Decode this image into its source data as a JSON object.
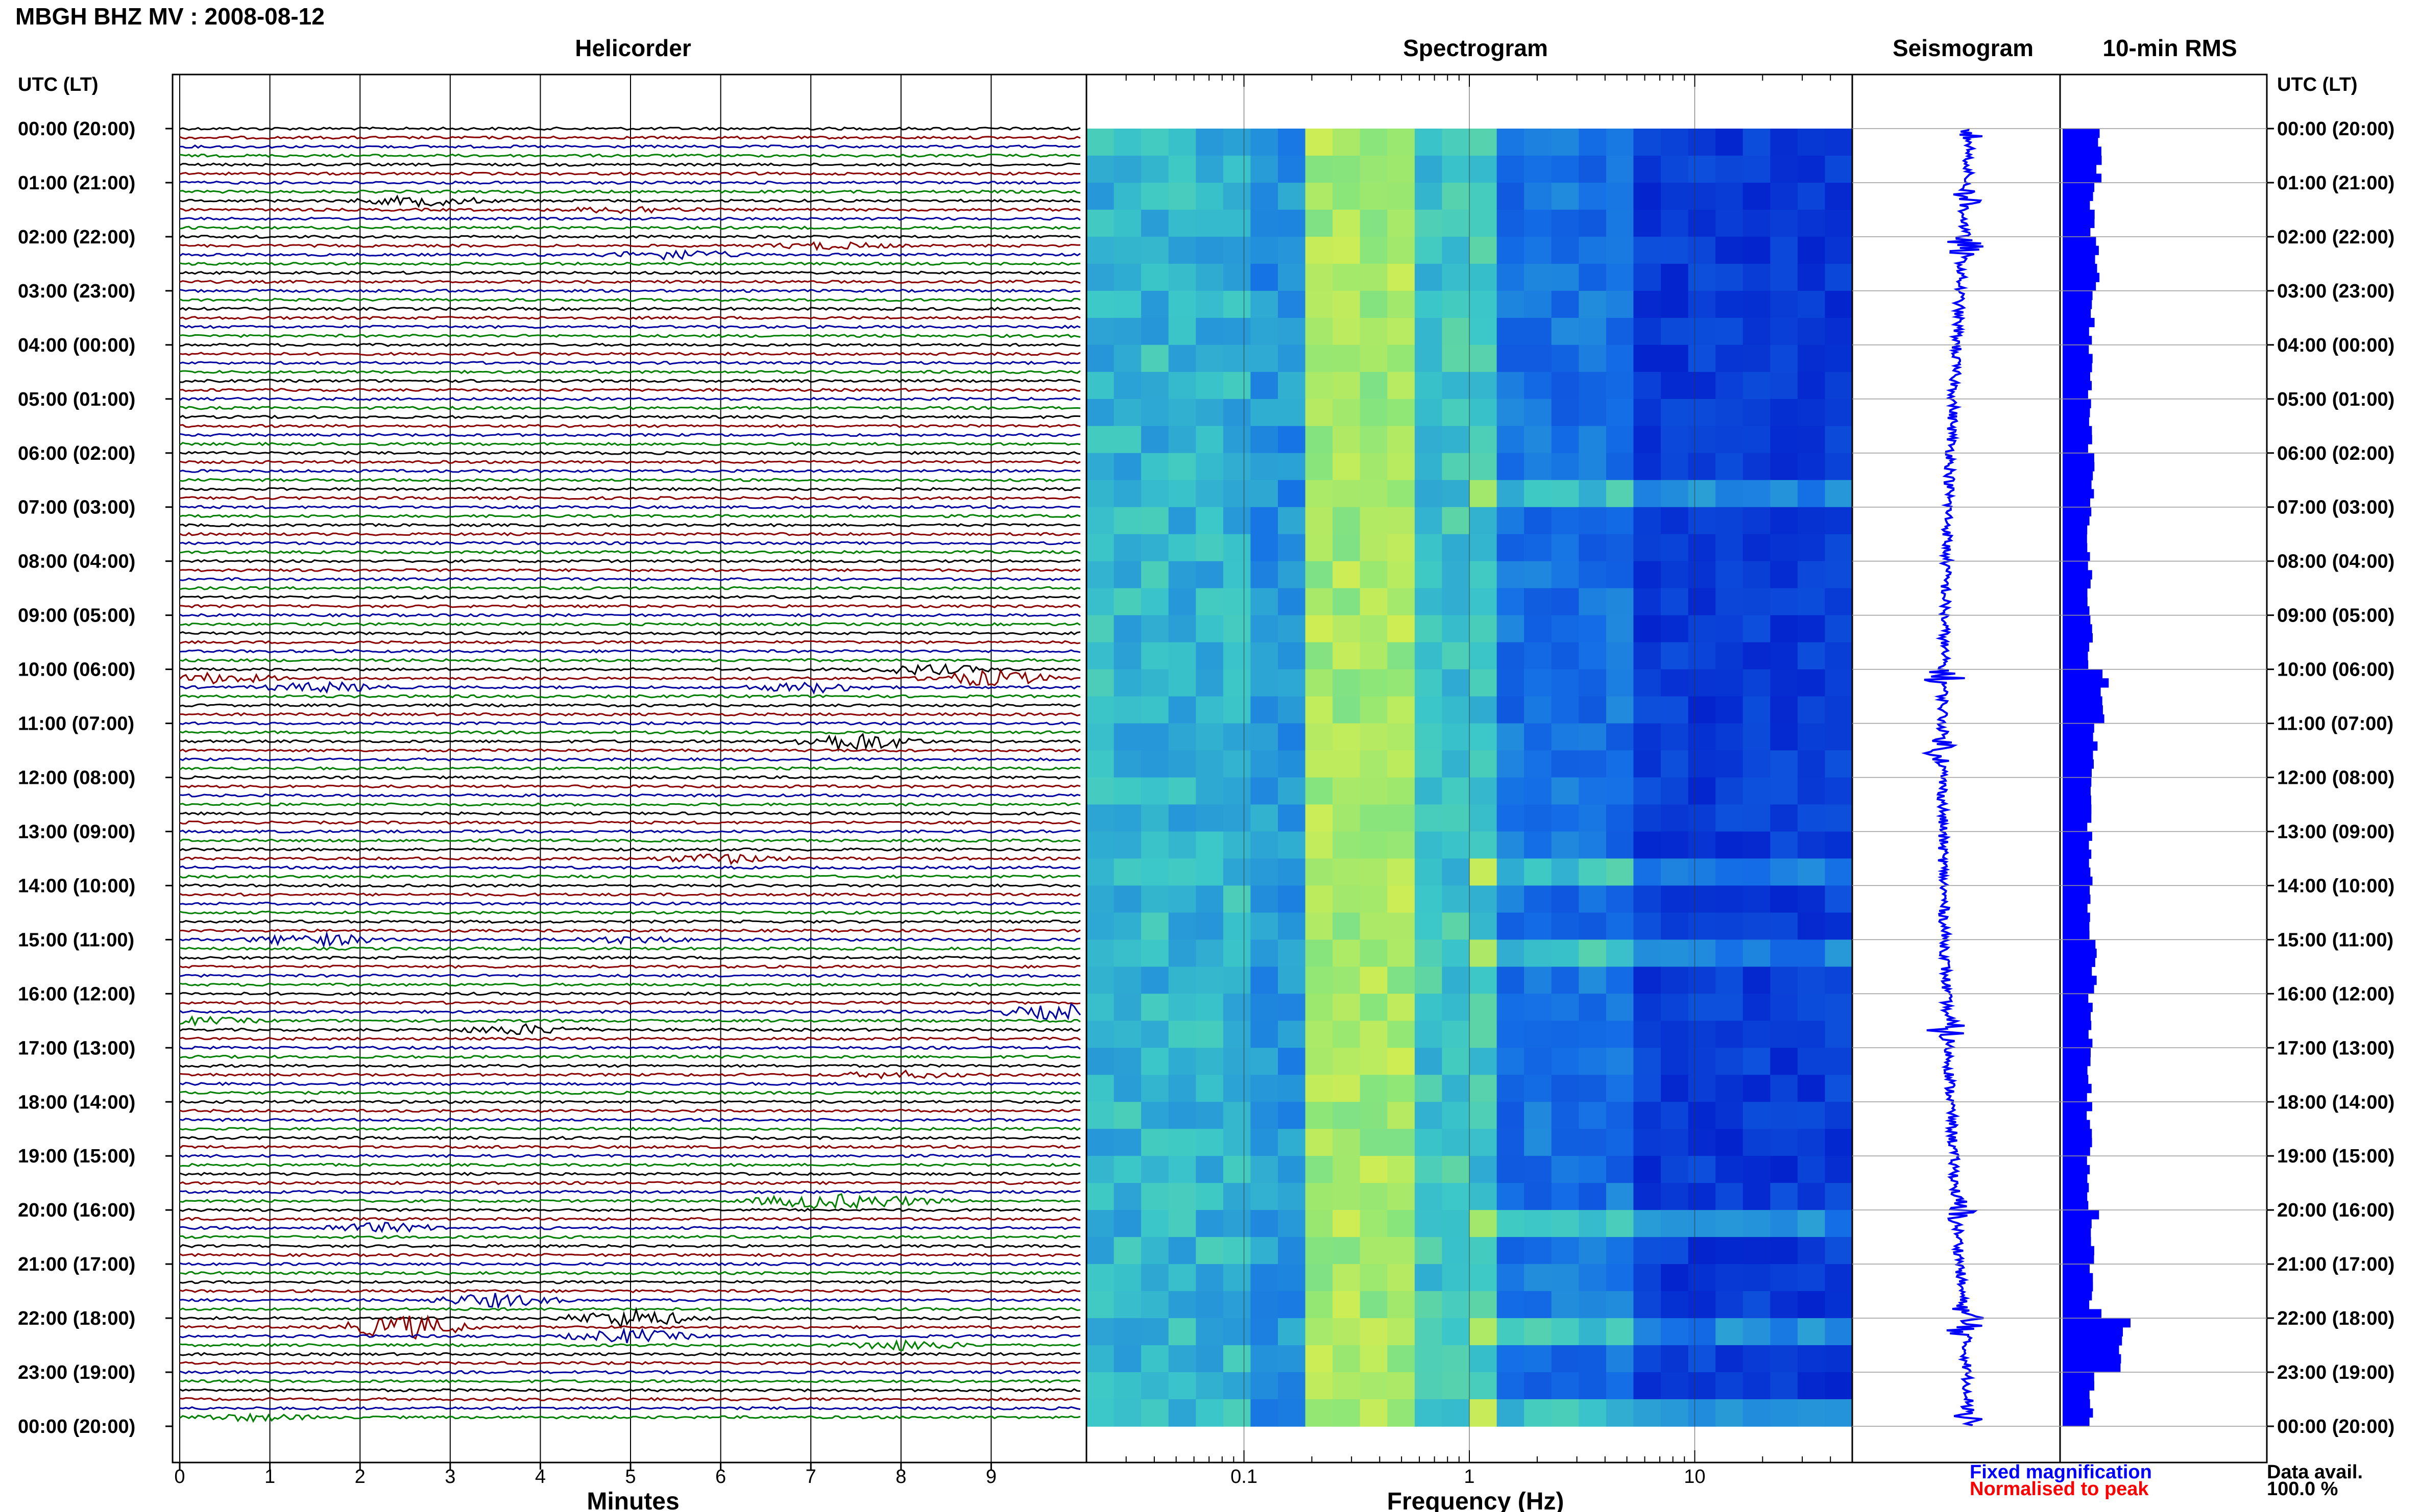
{
  "header": {
    "title": "MBGH BHZ MV : 2008-08-12"
  },
  "panels": {
    "helicorder": "Helicorder",
    "spectrogram": "Spectrogram",
    "seismogram": "Seismogram",
    "rms": "10-min RMS"
  },
  "time_axis_label_left": "UTC (LT)",
  "time_axis_label_right": "UTC (LT)",
  "hour_labels": [
    "00:00 (20:00)",
    "01:00 (21:00)",
    "02:00 (22:00)",
    "03:00 (23:00)",
    "04:00 (00:00)",
    "05:00 (01:00)",
    "06:00 (02:00)",
    "07:00 (03:00)",
    "08:00 (04:00)",
    "09:00 (05:00)",
    "10:00 (06:00)",
    "11:00 (07:00)",
    "12:00 (08:00)",
    "13:00 (09:00)",
    "14:00 (10:00)",
    "15:00 (11:00)",
    "16:00 (12:00)",
    "17:00 (13:00)",
    "18:00 (14:00)",
    "19:00 (15:00)",
    "20:00 (16:00)",
    "21:00 (17:00)",
    "22:00 (18:00)",
    "23:00 (19:00)",
    "00:00 (20:00)"
  ],
  "footer": {
    "minutes_label": "Minutes",
    "frequency_label": "Frequency (Hz)",
    "fixed_magnification": "Fixed magnification",
    "normalised_to_peak": "Normalised to peak",
    "data_avail_label": "Data avail.",
    "data_avail_value": "100.0 %"
  },
  "colors": {
    "trace_cycle": [
      "#000000",
      "#8b0000",
      "#0000a0",
      "#008000"
    ],
    "fixed_magnification": "#0000ff",
    "normalised_to_peak": "#ff0000",
    "rms_bar": "#0000ff",
    "spectrogram_low": "#0000cc",
    "spectrogram_high": "#e6f040"
  },
  "chart_data": [
    {
      "type": "line",
      "title": "Helicorder",
      "xlabel": "Minutes",
      "ylabel": "UTC (LT)",
      "x_ticks": [
        "0",
        "1",
        "2",
        "3",
        "4",
        "5",
        "6",
        "7",
        "8",
        "9"
      ],
      "xlim": [
        0,
        10
      ],
      "rows": 144,
      "row_minutes": 10,
      "events": [
        {
          "hour": 1.33,
          "minute": 2.7,
          "amp": 3
        },
        {
          "hour": 1.5,
          "minute": 5.0,
          "amp": 2
        },
        {
          "hour": 2.17,
          "minute": 7.2,
          "amp": 2
        },
        {
          "hour": 2.33,
          "minute": 5.5,
          "amp": 3
        },
        {
          "hour": 10.0,
          "minute": 8.3,
          "amp": 3
        },
        {
          "hour": 10.17,
          "minute": 0.4,
          "amp": 3
        },
        {
          "hour": 10.17,
          "minute": 9.0,
          "amp": 5
        },
        {
          "hour": 10.33,
          "minute": 1.6,
          "amp": 3
        },
        {
          "hour": 10.33,
          "minute": 7.0,
          "amp": 3
        },
        {
          "hour": 11.33,
          "minute": 7.5,
          "amp": 6
        },
        {
          "hour": 13.5,
          "minute": 6.0,
          "amp": 3
        },
        {
          "hour": 15.0,
          "minute": 5.0,
          "amp": 2
        },
        {
          "hour": 15.0,
          "minute": 1.5,
          "amp": 4
        },
        {
          "hour": 16.33,
          "minute": 9.8,
          "amp": 5
        },
        {
          "hour": 16.5,
          "minute": 0.2,
          "amp": 2
        },
        {
          "hour": 16.67,
          "minute": 3.8,
          "amp": 3
        },
        {
          "hour": 17.5,
          "minute": 8.0,
          "amp": 2
        },
        {
          "hour": 19.83,
          "minute": 7.0,
          "amp": 4
        },
        {
          "hour": 19.9,
          "minute": 7.8,
          "amp": 3
        },
        {
          "hour": 20.33,
          "minute": 2.2,
          "amp": 3
        },
        {
          "hour": 21.67,
          "minute": 3.5,
          "amp": 4
        },
        {
          "hour": 22.0,
          "minute": 5.0,
          "amp": 6
        },
        {
          "hour": 22.17,
          "minute": 2.5,
          "amp": 8
        },
        {
          "hour": 22.33,
          "minute": 5.0,
          "amp": 4
        },
        {
          "hour": 22.5,
          "minute": 8.0,
          "amp": 3
        },
        {
          "hour": 23.83,
          "minute": 0.8,
          "amp": 2
        }
      ]
    },
    {
      "type": "heatmap",
      "title": "Spectrogram",
      "xlabel": "Frequency (Hz)",
      "x_scale": "log",
      "xlim": [
        0.02,
        50
      ],
      "x_ticks": [
        "0.1",
        "1",
        "10"
      ],
      "peak_band_hz": [
        0.2,
        0.5
      ],
      "noise_hours": [
        1.33,
        2.33,
        6.5,
        10.17,
        11.33,
        13.5,
        15.0,
        16.67,
        20.0,
        22.0,
        22.17,
        23.5
      ]
    },
    {
      "type": "line",
      "title": "Seismogram",
      "spikes_hours": [
        0.0,
        1.33,
        2.17,
        10.17,
        11.5,
        16.67,
        20.0,
        22.0,
        22.17,
        23.83
      ]
    },
    {
      "type": "bar",
      "title": "10-min RMS",
      "orientation": "horizontal",
      "bins_per_hour": 6,
      "profile": [
        {
          "hour": 0,
          "value": 0.75
        },
        {
          "hour": 1,
          "value": 0.62
        },
        {
          "hour": 2,
          "value": 0.7
        },
        {
          "hour": 3,
          "value": 0.6
        },
        {
          "hour": 4,
          "value": 0.58
        },
        {
          "hour": 5,
          "value": 0.57
        },
        {
          "hour": 6,
          "value": 0.6
        },
        {
          "hour": 7,
          "value": 0.56
        },
        {
          "hour": 8,
          "value": 0.55
        },
        {
          "hour": 9,
          "value": 0.57
        },
        {
          "hour": 10,
          "value": 0.8
        },
        {
          "hour": 11,
          "value": 0.62
        },
        {
          "hour": 12,
          "value": 0.55
        },
        {
          "hour": 13,
          "value": 0.6
        },
        {
          "hour": 14,
          "value": 0.57
        },
        {
          "hour": 15,
          "value": 0.65
        },
        {
          "hour": 16,
          "value": 0.58
        },
        {
          "hour": 17,
          "value": 0.56
        },
        {
          "hour": 18,
          "value": 0.55
        },
        {
          "hour": 19,
          "value": 0.56
        },
        {
          "hour": 20,
          "value": 0.62
        },
        {
          "hour": 21,
          "value": 0.58
        },
        {
          "hour": 22,
          "value": 1.2
        },
        {
          "hour": 23,
          "value": 0.6
        }
      ],
      "peaks": [
        {
          "hour": 10.17,
          "value": 0.95
        },
        {
          "hour": 11.33,
          "value": 0.72
        },
        {
          "hour": 20.0,
          "value": 0.75
        },
        {
          "hour": 21.83,
          "value": 0.8
        },
        {
          "hour": 22.0,
          "value": 1.4
        },
        {
          "hour": 22.17,
          "value": 1.1
        },
        {
          "hour": 22.33,
          "value": 0.95
        }
      ]
    }
  ]
}
